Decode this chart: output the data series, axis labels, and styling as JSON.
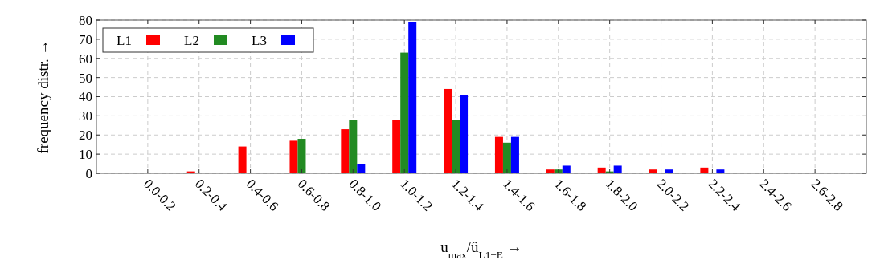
{
  "chart_data": {
    "type": "bar",
    "xlabel": "u$_{max}$/û$_{L1−E}$ →",
    "ylabel": "frequency distr. →",
    "categories": [
      "0.0-0.2",
      "0.2-0.4",
      "0.4-0.6",
      "0.6-0.8",
      "0.8-1.0",
      "1.0-1.2",
      "1.2-1.4",
      "1.4-1.6",
      "1.6-1.8",
      "1.8-2.0",
      "2.0-2.2",
      "2.2-2.4",
      "2.4-2.6",
      "2.6-2.8"
    ],
    "series": [
      {
        "name": "L1",
        "color": "#ff0000",
        "values": [
          0,
          1,
          14,
          17,
          23,
          28,
          44,
          19,
          2,
          3,
          2,
          3,
          0,
          0
        ]
      },
      {
        "name": "L2",
        "color": "#228b22",
        "values": [
          0,
          0,
          0,
          18,
          28,
          63,
          28,
          16,
          2,
          1,
          0,
          0,
          0,
          0
        ]
      },
      {
        "name": "L3",
        "color": "#0000ff",
        "values": [
          0,
          0,
          0,
          0,
          5,
          79,
          41,
          19,
          4,
          4,
          2,
          2,
          0,
          0
        ]
      }
    ],
    "ylim": [
      0,
      80
    ],
    "yticks": [
      0,
      10,
      20,
      30,
      40,
      50,
      60,
      70,
      80
    ],
    "grid": true,
    "legend": "top left"
  }
}
